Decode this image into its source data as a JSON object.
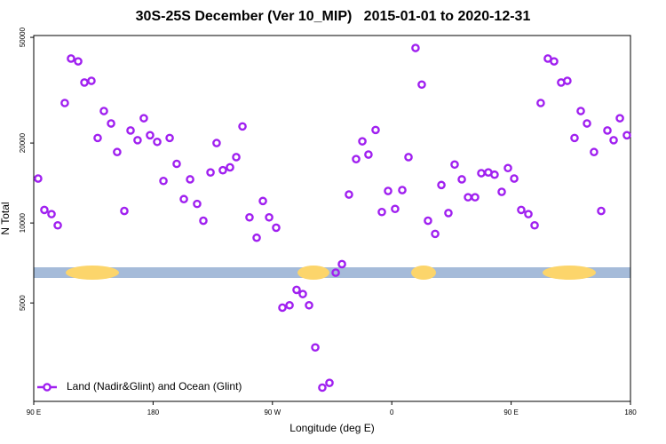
{
  "chart_data": {
    "type": "scatter",
    "title": "30S-25S December (Ver 10_MIP)   2015-01-01 to 2020-12-31",
    "x_label": "Longitude (deg E)",
    "y_label": "N Total",
    "xlim": [
      90,
      540
    ],
    "xticks": [
      {
        "value": 90,
        "label": "90 E"
      },
      180,
      {
        "value": 270,
        "label": "90 W"
      },
      {
        "value": 360,
        "label": "0"
      },
      {
        "value": 450,
        "label": "90 E"
      },
      {
        "value": 540,
        "label": "180"
      }
    ],
    "ylim": [
      2130,
      50800
    ],
    "yticks": [
      5000,
      10000,
      20000,
      50000
    ],
    "log_y": true,
    "legend": "bottomleft",
    "x": [
      93.3,
      98.0,
      103.4,
      108.1,
      113.4,
      118.1,
      123.5,
      128.2,
      133.5,
      138.2,
      142.9,
      148.3,
      152.9,
      158.3,
      163.0,
      168.3,
      173.0,
      177.7,
      183.1,
      187.8,
      192.5,
      197.8,
      203.2,
      207.9,
      213.2,
      217.9,
      223.3,
      227.9,
      232.6,
      238.0,
      242.7,
      247.4,
      252.7,
      258.1,
      262.8,
      267.5,
      272.8,
      277.5,
      282.9,
      288.2,
      292.9,
      297.6,
      302.3,
      307.6,
      313.0,
      317.7,
      322.4,
      327.7,
      333.1,
      337.8,
      342.4,
      347.8,
      352.5,
      357.2,
      362.5,
      367.9,
      372.6,
      377.9,
      382.6,
      387.3,
      392.7,
      397.4,
      402.7,
      407.4,
      412.8,
      417.5,
      422.8,
      427.5,
      432.8,
      437.5,
      442.9,
      447.6,
      452.3,
      457.6,
      463.0,
      467.7,
      472.3,
      477.7,
      482.4,
      487.7,
      492.4,
      497.8,
      502.5,
      507.2,
      512.5,
      517.9,
      522.6,
      527.3,
      532.0,
      537.3
    ],
    "series": [
      {
        "name": "Land (Nadir&Glint) and Ocean (Glint)",
        "color": "#a020f0",
        "values": [
          14700,
          11200,
          10800,
          9800,
          28300,
          41600,
          40600,
          33800,
          34300,
          20900,
          26400,
          23700,
          18500,
          11100,
          22300,
          20500,
          24800,
          21400,
          20200,
          14400,
          20900,
          16700,
          12300,
          14600,
          11800,
          10200,
          15500,
          20000,
          15800,
          16200,
          17700,
          23100,
          10500,
          8800,
          12100,
          10500,
          9600,
          4800,
          4900,
          5600,
          5400,
          4900,
          3400,
          2400,
          2500,
          6500,
          7000,
          12800,
          17400,
          20300,
          18100,
          22400,
          11000,
          13200,
          11300,
          13300,
          17700,
          45600,
          33200,
          10200,
          9100,
          13900,
          10900,
          16600,
          14600,
          12500,
          12500,
          15400,
          15500,
          15200,
          13100,
          16100,
          14700,
          11200,
          10800,
          9800,
          28300,
          41600,
          40600,
          33800,
          34300,
          20900,
          26400,
          23700,
          18500,
          11100,
          22300,
          20500,
          24800,
          21400
        ]
      }
    ]
  }
}
